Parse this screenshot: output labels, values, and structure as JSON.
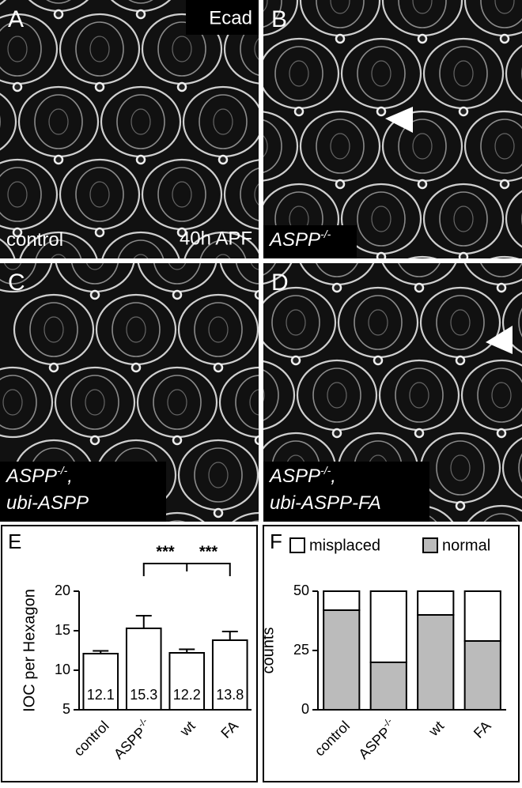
{
  "panels": [
    {
      "letter": "A",
      "top_right": "Ecad",
      "bottom_left": [
        [
          {
            "text": "control"
          }
        ]
      ],
      "bottom_right": "40h APF"
    },
    {
      "letter": "B",
      "bottom_left": [
        [
          {
            "text": "ASPP"
          },
          {
            "text": "-/-",
            "sup": true
          }
        ]
      ]
    },
    {
      "letter": "C",
      "bottom_left": [
        [
          {
            "text": "ASPP"
          },
          {
            "text": "-/-",
            "sup": true
          },
          {
            "text": ","
          }
        ],
        [
          {
            "text": "ubi-ASPP"
          }
        ]
      ]
    },
    {
      "letter": "D",
      "bottom_left": [
        [
          {
            "text": "ASPP"
          },
          {
            "text": "-/-",
            "sup": true
          },
          {
            "text": ","
          }
        ],
        [
          {
            "text": "ubi-ASPP-FA"
          }
        ]
      ]
    }
  ],
  "chart_data": [
    {
      "type": "bar",
      "letter": "E",
      "ylabel": "IOC per Hexagon",
      "categories": [
        "control",
        "ASPP",
        "wt",
        "FA"
      ],
      "category_superscripts": [
        null,
        "-/-",
        null,
        null
      ],
      "values": [
        12.1,
        15.3,
        12.2,
        13.8
      ],
      "errors": [
        0.35,
        1.6,
        0.45,
        1.1
      ],
      "color": "#ffffff",
      "ylim": [
        5,
        20
      ],
      "yticks": [
        5,
        10,
        15,
        20
      ],
      "annotations": [
        "***",
        "***"
      ]
    },
    {
      "type": "stacked_bar",
      "letter": "F",
      "ylabel": "counts",
      "categories": [
        "control",
        "ASPP",
        "wt",
        "FA"
      ],
      "category_superscripts": [
        null,
        "-/-",
        null,
        null
      ],
      "series": [
        {
          "name": "normal",
          "color": "#bbbbbb",
          "values": [
            42,
            20,
            40,
            29
          ]
        },
        {
          "name": "misplaced",
          "color": "#ffffff",
          "values": [
            8,
            30,
            10,
            21
          ]
        }
      ],
      "ylim": [
        0,
        50
      ],
      "yticks": [
        0,
        25,
        50
      ],
      "legend": "top"
    }
  ]
}
